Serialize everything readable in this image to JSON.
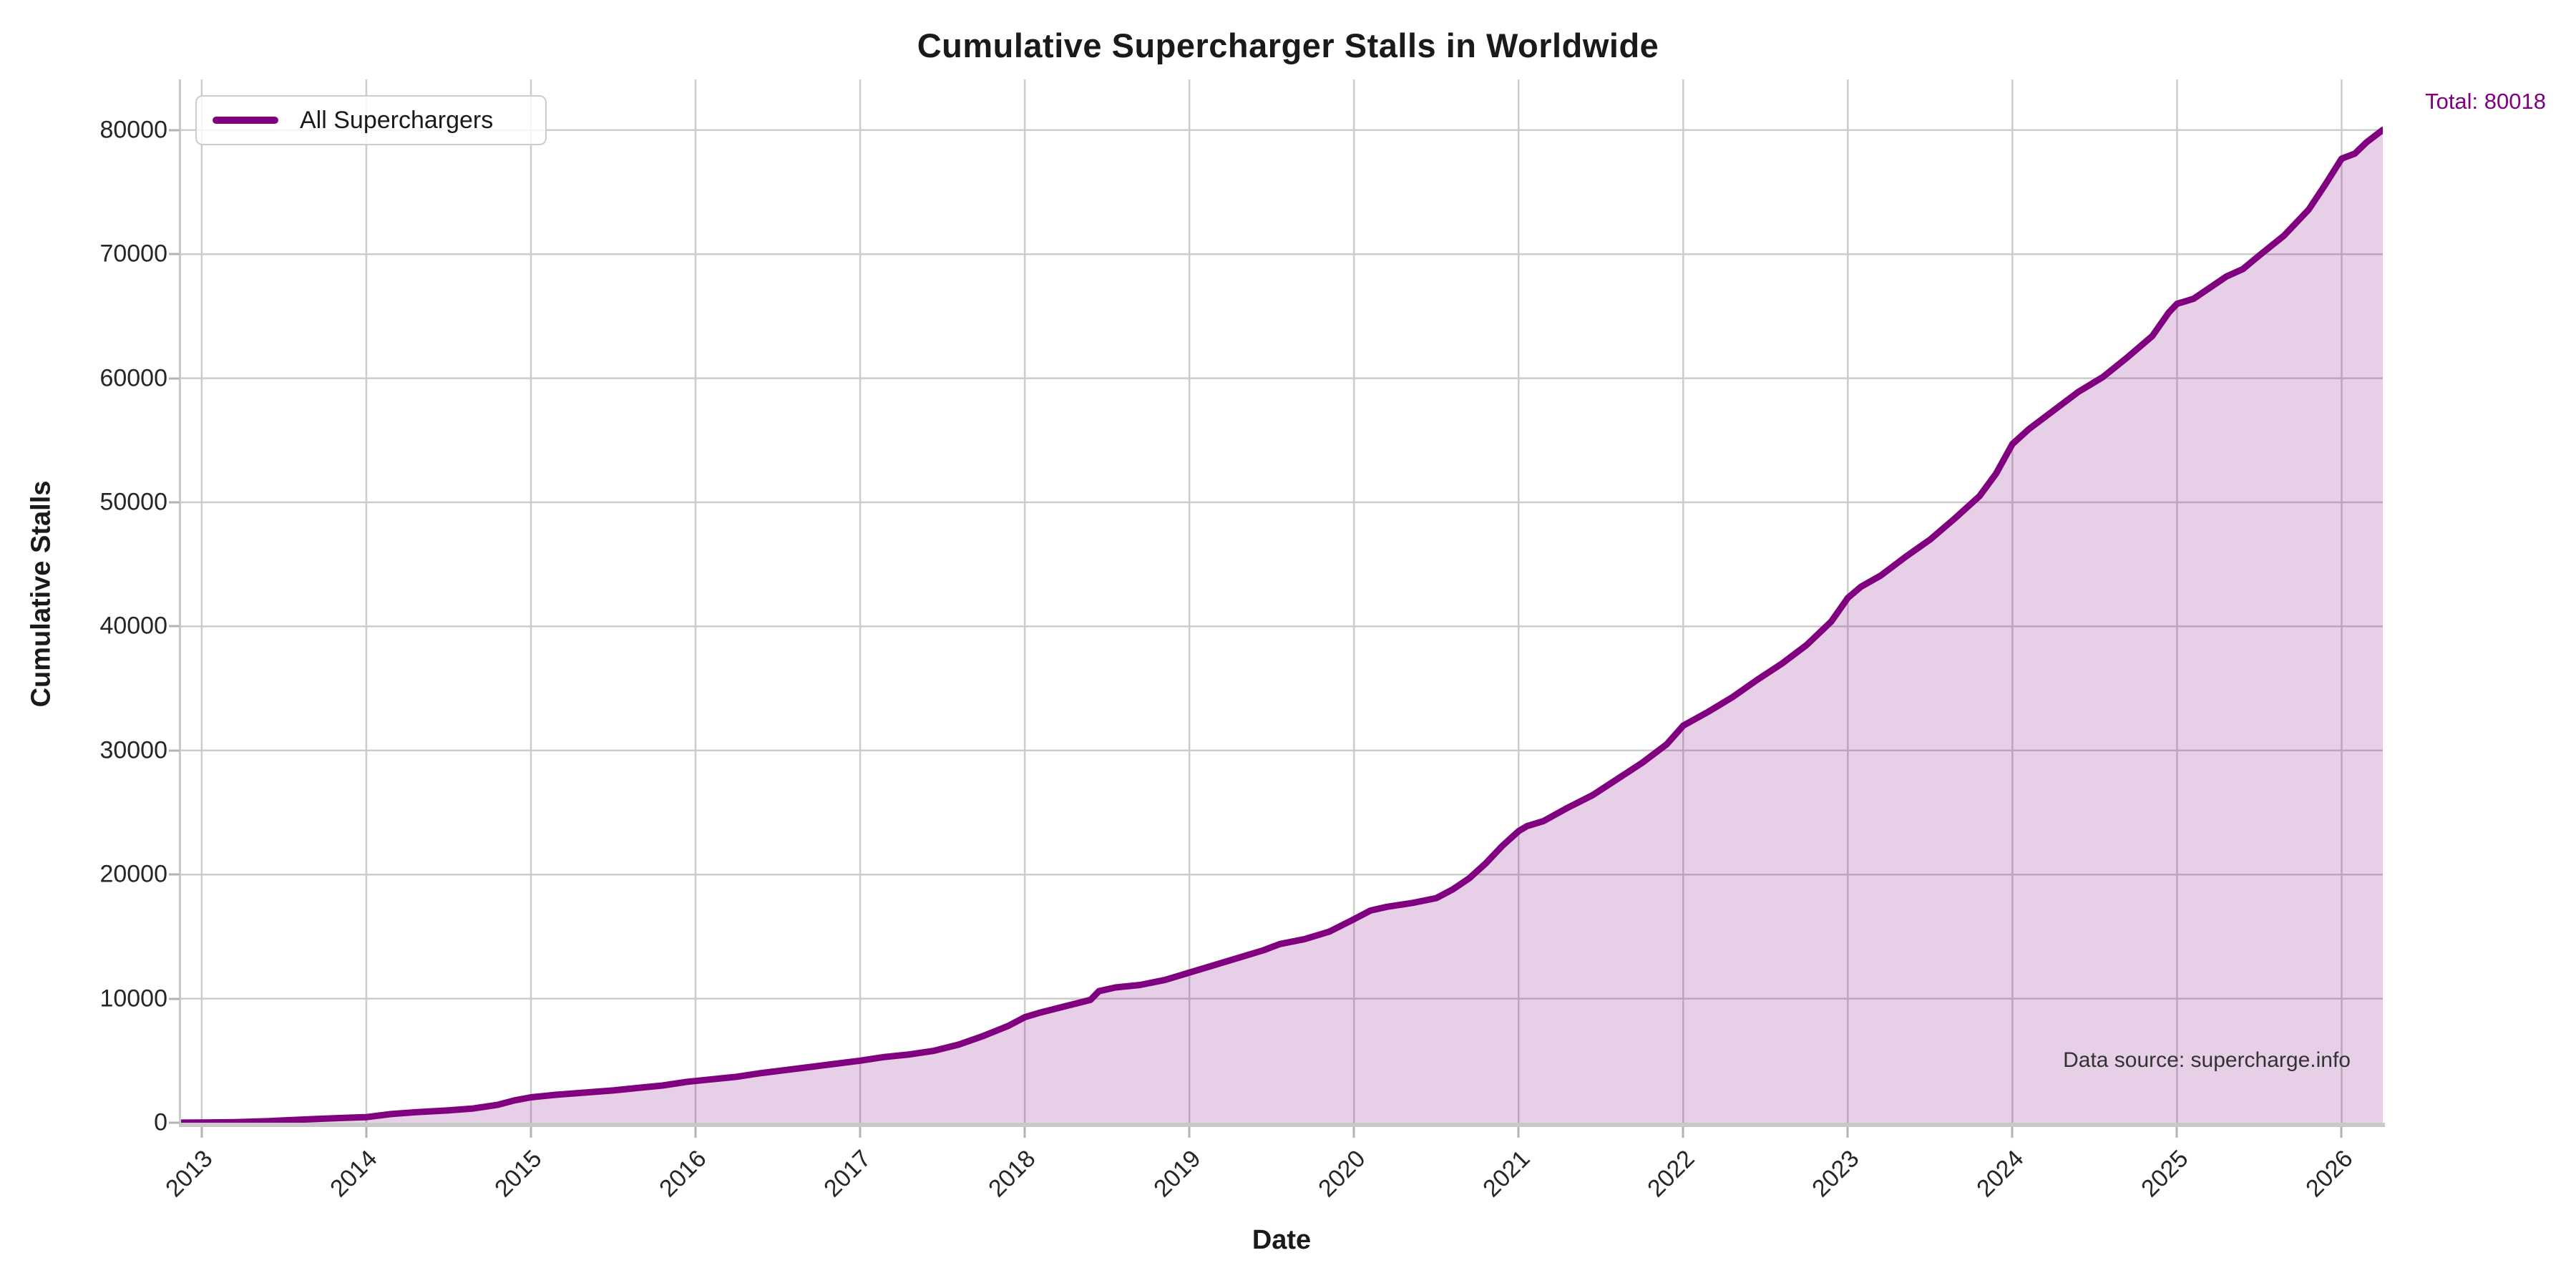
{
  "title": "Cumulative Supercharger Stalls in Worldwide",
  "legend": {
    "label": "All Superchargers"
  },
  "annotations": {
    "total_label": "Total: 80018",
    "data_source": "Data source: supercharge.info"
  },
  "colors": {
    "line": "#800080",
    "fill": "rgba(128,0,128,0.19)",
    "grid": "#cccccc",
    "accent_text": "#800080"
  },
  "chart_data": {
    "type": "area",
    "title": "Cumulative Supercharger Stalls in Worldwide",
    "xlabel": "Date",
    "ylabel": "Cumulative Stalls",
    "legend_entries": [
      "All Superchargers"
    ],
    "legend_position": "upper left",
    "grid": true,
    "total": 80018,
    "x_ticks": [
      2013,
      2014,
      2015,
      2016,
      2017,
      2018,
      2019,
      2020,
      2021,
      2022,
      2023,
      2024,
      2025,
      2026
    ],
    "y_ticks": [
      0,
      10000,
      20000,
      30000,
      40000,
      50000,
      60000,
      70000,
      80000
    ],
    "xlim": [
      2012.87,
      2026.25
    ],
    "ylim": [
      0,
      84083
    ],
    "series": [
      {
        "name": "All Superchargers",
        "points": [
          [
            2012.87,
            6
          ],
          [
            2013.0,
            10
          ],
          [
            2013.2,
            40
          ],
          [
            2013.4,
            120
          ],
          [
            2013.55,
            220
          ],
          [
            2013.7,
            300
          ],
          [
            2013.85,
            380
          ],
          [
            2014.0,
            450
          ],
          [
            2014.15,
            700
          ],
          [
            2014.3,
            850
          ],
          [
            2014.5,
            1000
          ],
          [
            2014.65,
            1150
          ],
          [
            2014.8,
            1450
          ],
          [
            2014.9,
            1800
          ],
          [
            2015.0,
            2050
          ],
          [
            2015.15,
            2250
          ],
          [
            2015.3,
            2400
          ],
          [
            2015.5,
            2600
          ],
          [
            2015.65,
            2800
          ],
          [
            2015.8,
            3000
          ],
          [
            2015.95,
            3300
          ],
          [
            2016.1,
            3500
          ],
          [
            2016.25,
            3700
          ],
          [
            2016.4,
            4000
          ],
          [
            2016.55,
            4250
          ],
          [
            2016.7,
            4500
          ],
          [
            2016.85,
            4750
          ],
          [
            2017.0,
            5000
          ],
          [
            2017.15,
            5300
          ],
          [
            2017.3,
            5500
          ],
          [
            2017.45,
            5800
          ],
          [
            2017.6,
            6300
          ],
          [
            2017.75,
            7000
          ],
          [
            2017.9,
            7800
          ],
          [
            2018.0,
            8500
          ],
          [
            2018.1,
            8900
          ],
          [
            2018.25,
            9400
          ],
          [
            2018.4,
            9900
          ],
          [
            2018.45,
            10600
          ],
          [
            2018.55,
            10900
          ],
          [
            2018.7,
            11100
          ],
          [
            2018.85,
            11500
          ],
          [
            2019.0,
            12100
          ],
          [
            2019.15,
            12700
          ],
          [
            2019.3,
            13300
          ],
          [
            2019.45,
            13900
          ],
          [
            2019.55,
            14400
          ],
          [
            2019.7,
            14800
          ],
          [
            2019.85,
            15400
          ],
          [
            2020.0,
            16400
          ],
          [
            2020.1,
            17100
          ],
          [
            2020.2,
            17400
          ],
          [
            2020.35,
            17700
          ],
          [
            2020.5,
            18100
          ],
          [
            2020.6,
            18800
          ],
          [
            2020.7,
            19700
          ],
          [
            2020.8,
            20900
          ],
          [
            2020.9,
            22300
          ],
          [
            2021.0,
            23500
          ],
          [
            2021.05,
            23900
          ],
          [
            2021.15,
            24300
          ],
          [
            2021.3,
            25400
          ],
          [
            2021.45,
            26400
          ],
          [
            2021.6,
            27700
          ],
          [
            2021.75,
            29000
          ],
          [
            2021.9,
            30500
          ],
          [
            2022.0,
            32000
          ],
          [
            2022.15,
            33100
          ],
          [
            2022.3,
            34300
          ],
          [
            2022.45,
            35700
          ],
          [
            2022.6,
            37000
          ],
          [
            2022.75,
            38500
          ],
          [
            2022.9,
            40400
          ],
          [
            2023.0,
            42300
          ],
          [
            2023.08,
            43200
          ],
          [
            2023.2,
            44100
          ],
          [
            2023.35,
            45600
          ],
          [
            2023.5,
            47000
          ],
          [
            2023.65,
            48700
          ],
          [
            2023.8,
            50500
          ],
          [
            2023.9,
            52300
          ],
          [
            2024.0,
            54700
          ],
          [
            2024.1,
            55900
          ],
          [
            2024.25,
            57400
          ],
          [
            2024.4,
            58900
          ],
          [
            2024.55,
            60100
          ],
          [
            2024.7,
            61700
          ],
          [
            2024.85,
            63400
          ],
          [
            2024.95,
            65300
          ],
          [
            2025.0,
            66000
          ],
          [
            2025.1,
            66400
          ],
          [
            2025.2,
            67300
          ],
          [
            2025.3,
            68200
          ],
          [
            2025.4,
            68800
          ],
          [
            2025.5,
            69900
          ],
          [
            2025.65,
            71500
          ],
          [
            2025.8,
            73600
          ],
          [
            2025.9,
            75600
          ],
          [
            2026.0,
            77700
          ],
          [
            2026.08,
            78100
          ],
          [
            2026.15,
            79000
          ],
          [
            2026.25,
            80018
          ]
        ]
      }
    ]
  }
}
